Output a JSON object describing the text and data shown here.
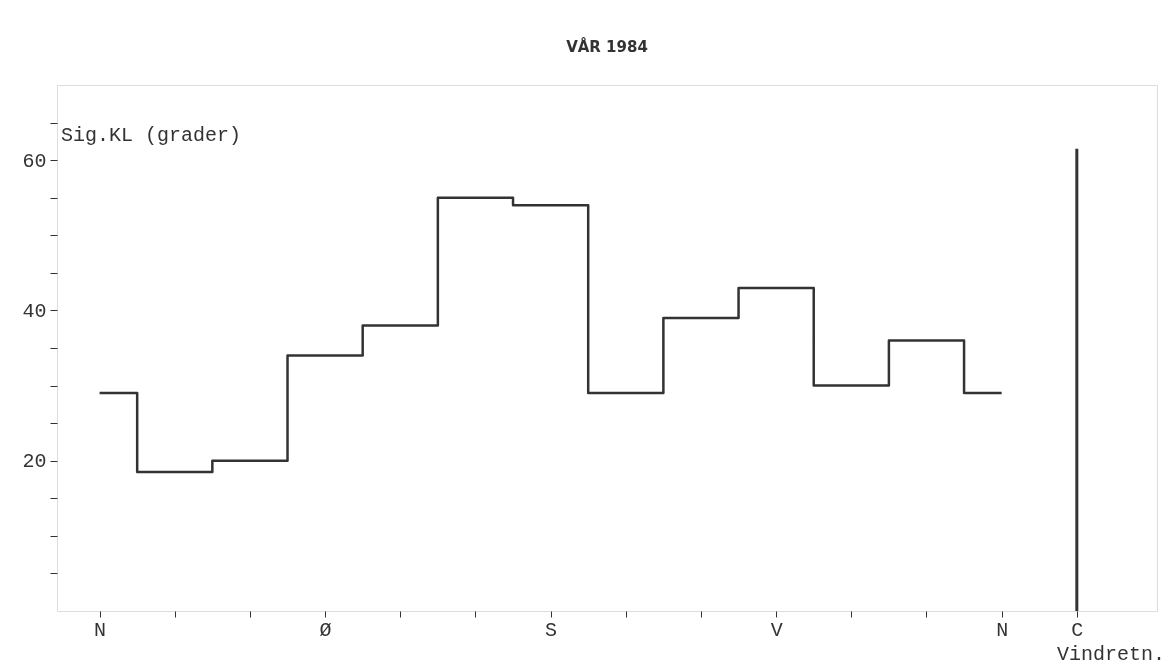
{
  "chart_data": {
    "type": "step",
    "title": "VÅR 1984",
    "ylabel": "Sig.KL (grader)",
    "xlabel": "Vindretn.",
    "categories": [
      "N",
      null,
      null,
      "Ø",
      null,
      null,
      "S",
      null,
      null,
      "V",
      null,
      null,
      "N",
      "C"
    ],
    "ylim": [
      0,
      70
    ],
    "yticks": [
      {
        "value": 5,
        "label": null
      },
      {
        "value": 10,
        "label": null
      },
      {
        "value": 15,
        "label": null
      },
      20,
      {
        "value": 25,
        "label": null
      },
      {
        "value": 30,
        "label": null
      },
      {
        "value": 35,
        "label": null
      },
      40,
      {
        "value": 45,
        "label": null
      },
      {
        "value": 50,
        "label": null
      },
      {
        "value": 55,
        "label": null
      },
      60,
      {
        "value": 65,
        "label": null
      }
    ],
    "grid": false,
    "legend": false,
    "line_style": "solid",
    "marker": "none",
    "series": [
      {
        "color": "#333333",
        "values": [
          29,
          18.5,
          20,
          34,
          38,
          55,
          54,
          29,
          39,
          43,
          30,
          36,
          29,
          null
        ]
      },
      {
        "type": "bar",
        "color": "#333333",
        "values": [
          null,
          null,
          null,
          null,
          null,
          null,
          null,
          null,
          null,
          null,
          null,
          null,
          null,
          61.5
        ]
      }
    ]
  }
}
